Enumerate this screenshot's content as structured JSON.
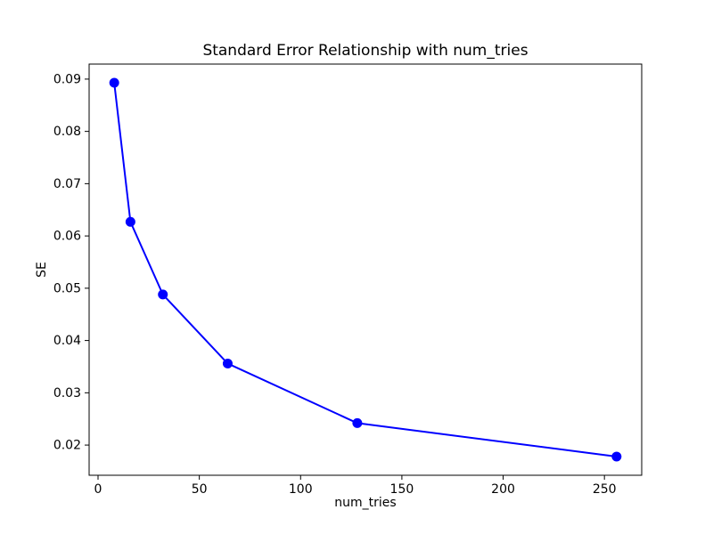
{
  "figure": {
    "background_color": "#ffffff",
    "spine_color": "#000000",
    "tick_label_color": "#000000"
  },
  "chart_data": {
    "type": "line",
    "title": "Standard Error Relationship with num_tries",
    "xlabel": "num_tries",
    "ylabel": "SE",
    "x": [
      8,
      16,
      32,
      64,
      128,
      256
    ],
    "y": [
      0.0893,
      0.0627,
      0.0488,
      0.0356,
      0.0242,
      0.0178
    ],
    "line_color": "#0000ff",
    "marker": "circle",
    "marker_color": "#0000ff",
    "xlim": [
      -4.4,
      268.4
    ],
    "ylim": [
      0.014225,
      0.092875
    ],
    "xticks": [
      0,
      50,
      100,
      150,
      200,
      250
    ],
    "xtick_labels": [
      "0",
      "50",
      "100",
      "150",
      "200",
      "250"
    ],
    "yticks": [
      0.02,
      0.03,
      0.04,
      0.05,
      0.06,
      0.07,
      0.08,
      0.09
    ],
    "ytick_labels": [
      "0.02",
      "0.03",
      "0.04",
      "0.05",
      "0.06",
      "0.07",
      "0.08",
      "0.09"
    ],
    "grid": false,
    "legend": false
  }
}
